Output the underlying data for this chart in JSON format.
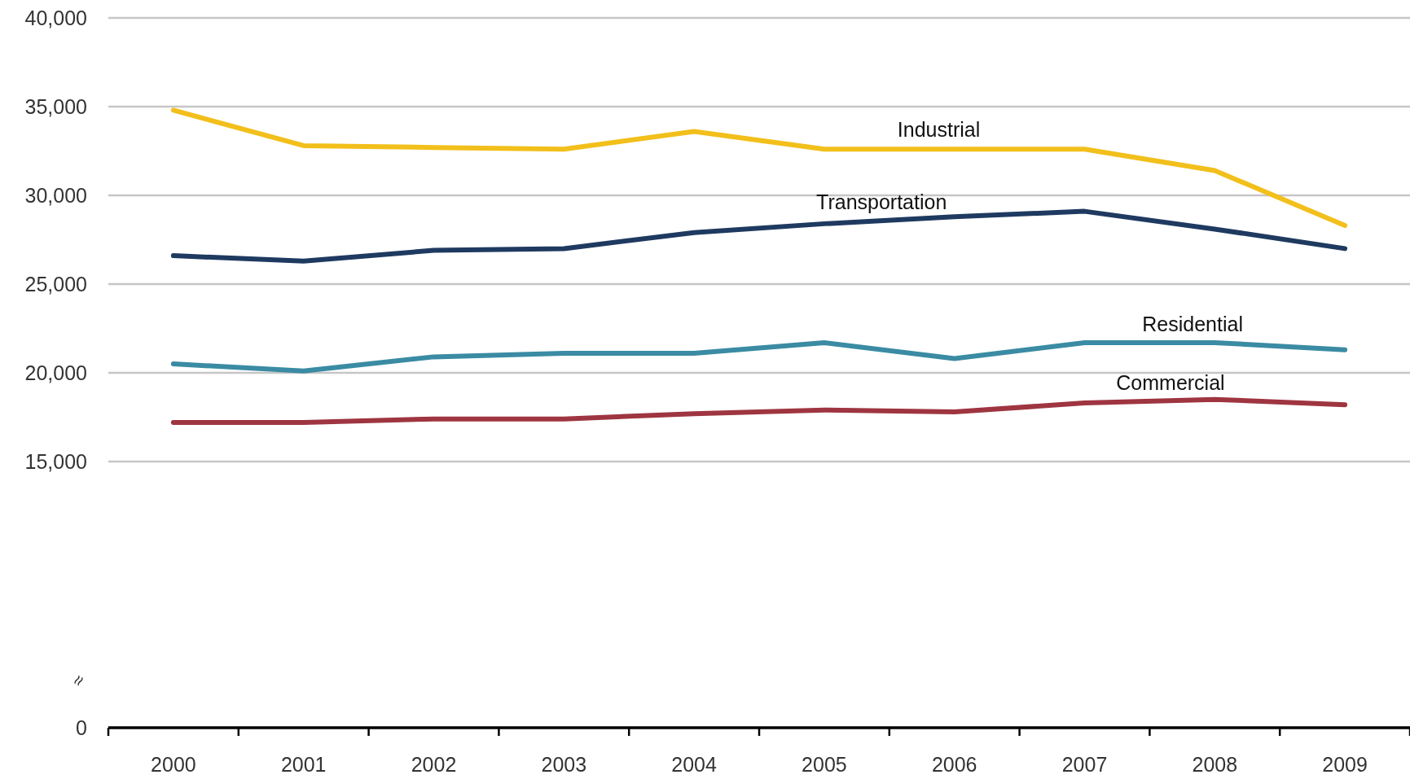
{
  "chart_data": {
    "type": "line",
    "categories": [
      "2000",
      "2001",
      "2002",
      "2003",
      "2004",
      "2005",
      "2006",
      "2007",
      "2008",
      "2009"
    ],
    "series": [
      {
        "name": "Industrial",
        "color": "#f2bf1b",
        "values": [
          34800,
          32800,
          32700,
          32600,
          33600,
          32600,
          32600,
          32600,
          31400,
          28300
        ]
      },
      {
        "name": "Transportation",
        "color": "#1f3a60",
        "values": [
          26600,
          26300,
          26900,
          27000,
          27900,
          28400,
          28800,
          29100,
          28100,
          27000
        ]
      },
      {
        "name": "Residential",
        "color": "#3a8ba3",
        "values": [
          20500,
          20100,
          20900,
          21100,
          21100,
          21700,
          20800,
          21700,
          21700,
          21300
        ]
      },
      {
        "name": "Commercial",
        "color": "#9e3540",
        "values": [
          17200,
          17200,
          17400,
          17400,
          17700,
          17900,
          17800,
          18300,
          18500,
          18200
        ]
      }
    ],
    "ylim": [
      0,
      40000
    ],
    "yticks": [
      0,
      {
        "value": 15000,
        "label": "15,000"
      },
      {
        "value": 20000,
        "label": "20,000"
      },
      {
        "value": 25000,
        "label": "25,000"
      },
      {
        "value": 30000,
        "label": "30,000"
      },
      {
        "value": 35000,
        "label": "35,000"
      },
      {
        "value": 40000,
        "label": "40,000"
      }
    ],
    "grid": "y",
    "annotations": [
      "≈"
    ]
  }
}
